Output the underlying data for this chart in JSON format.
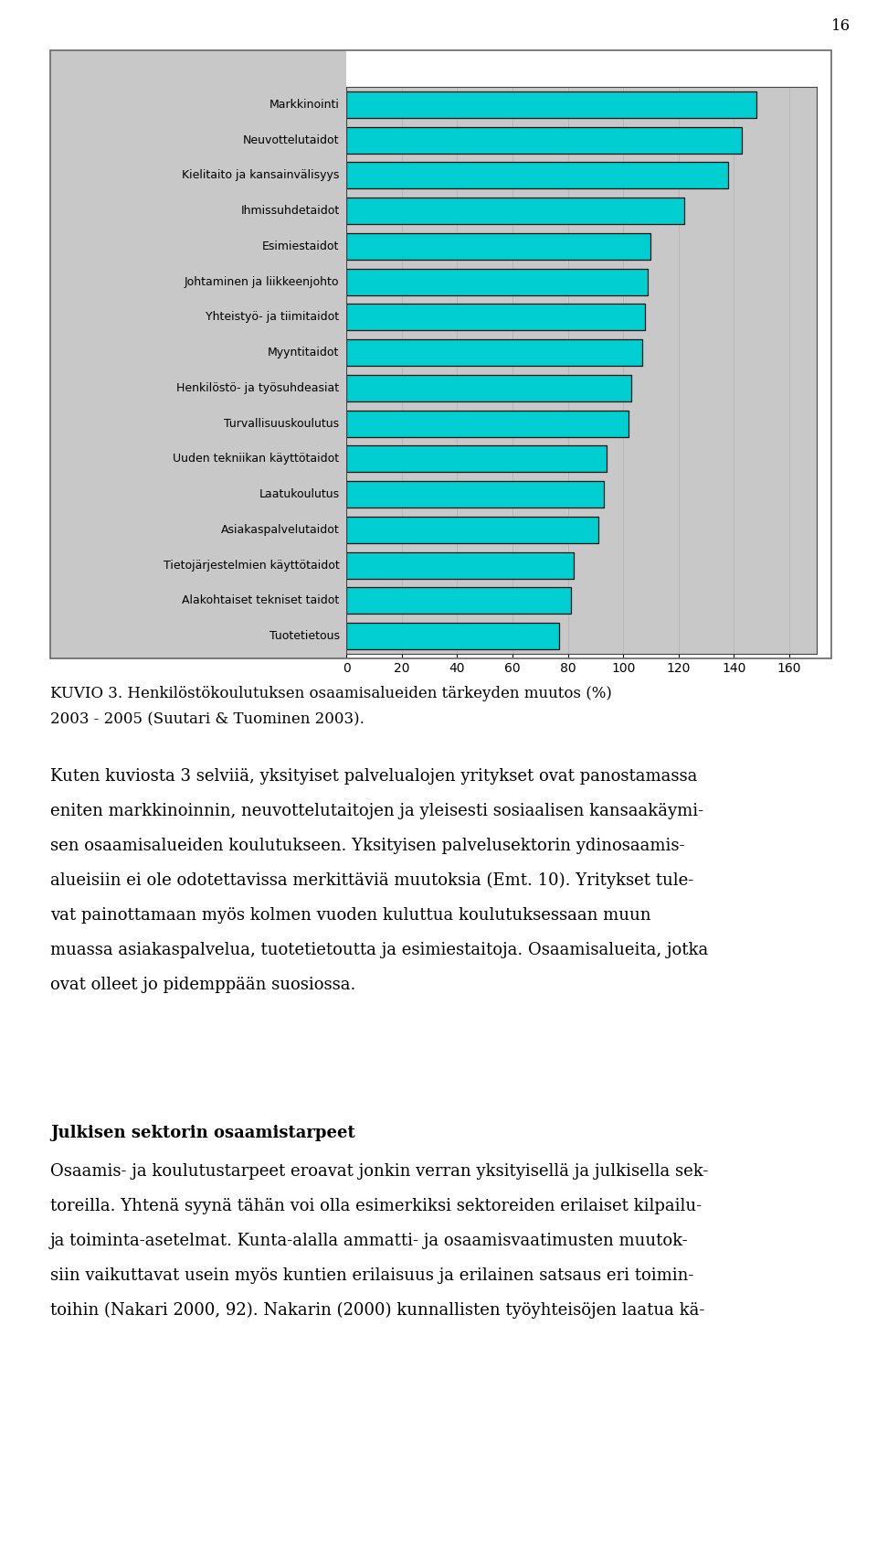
{
  "categories": [
    "Markkinointi",
    "Neuvottelutaidot",
    "Kielitaito ja kansainvälisyys",
    "Ihmissuhdetaidot",
    "Esimiestaidot",
    "Johtaminen ja liikkeenjohto",
    "Yhteistyö- ja tiimitaidot",
    "Myyntitaidot",
    "Henkilöstö- ja työsuhdeasiat",
    "Turvallisuuskoulutus",
    "Uuden tekniikan käyttötaidot",
    "Laatukoulutus",
    "Asiakaspalvelutaidot",
    "Tietojärjestelmien käyttötaidot",
    "Alakohtaiset tekniset taidot",
    "Tuotetietous"
  ],
  "values": [
    148,
    143,
    138,
    122,
    110,
    109,
    108,
    107,
    103,
    102,
    94,
    93,
    91,
    82,
    81,
    77
  ],
  "bar_color": "#00CED1",
  "bar_edge_color": "#111111",
  "plot_bg_color": "#C8C8C8",
  "xlim": [
    0,
    170
  ],
  "xticks": [
    0,
    20,
    40,
    60,
    80,
    100,
    120,
    140,
    160
  ],
  "page_number": "16",
  "caption_line1": "KUVIO 3. Henkilöstökoulutuksen osaamisalueiden tärkeyden muutos (%)",
  "caption_line2": "2003 - 2005 (Suutari & Tuominen 2003).",
  "body_lines": [
    "Kuten kuviosta 3 selviiä, yksityiset palvelualojen yritykset ovat panostamassa",
    "eniten markkinoinnin, neuvottelutaitojen ja yleisesti sosiaalisen kansaakäymi-",
    "sen osaamisalueiden koulutukseen. Yksityisen palvelusektorin ydinosaamis-",
    "alueisiin ei ole odotettavissa merkittäviä muutoksia (Emt. 10). Yritykset tule-",
    "vat painottamaan myös kolmen vuoden kuluttua koulutuksessaan muun",
    "muassa asiakaspalvelua, tuotetietoutta ja esimiestaitoja. Osaamisalueita, jotka",
    "ovat olleet jo pidemppään suosiossa."
  ],
  "section_title": "Julkisen sektorin osaamistarpeet",
  "section_lines": [
    "Osaamis- ja koulutustarpeet eroavat jonkin verran yksityisellä ja julkisella sek-",
    "toreilla. Yhtenä syynä tähän voi olla esimerkiksi sektoreiden erilaiset kilpailu-",
    "ja toiminta-asetelmat. Kunta-alalla ammatti- ja osaamisvaatimusten muutok-",
    "siin vaikuttavat usein myös kuntien erilaisuus ja erilainen satsaus eri toimin-",
    "toihin (Nakari 2000, 92). Nakarin (2000) kunnallisten työyhteisöjen laatua kä-"
  ]
}
